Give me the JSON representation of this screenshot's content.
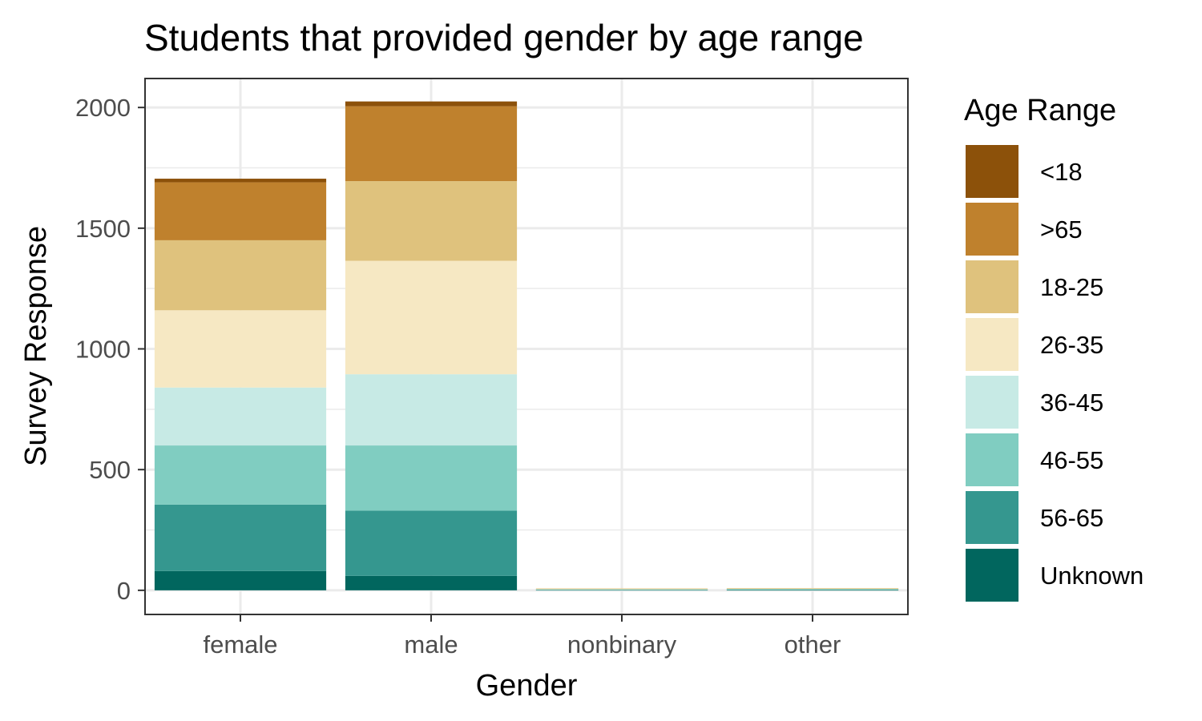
{
  "chart_data": {
    "type": "bar",
    "stacked": true,
    "title": "Students that provided gender by age range",
    "xlabel": "Gender",
    "ylabel": "Survey Response",
    "categories": [
      "female",
      "male",
      "nonbinary",
      "other"
    ],
    "ylim": [
      -100,
      2120
    ],
    "yticks": [
      0,
      500,
      1000,
      1500,
      2000
    ],
    "ytick_labels": [
      "0",
      "500",
      "1000",
      "1500",
      "2000"
    ],
    "grid": true,
    "legend": {
      "title": "Age Range",
      "position": "right"
    },
    "series": [
      {
        "name": "<18",
        "color": "#8c510a",
        "values": [
          15,
          20,
          0,
          0
        ]
      },
      {
        "name": ">65",
        "color": "#bf812d",
        "values": [
          240,
          310,
          0,
          0
        ]
      },
      {
        "name": "18-25",
        "color": "#dfc27d",
        "values": [
          290,
          330,
          1,
          1
        ]
      },
      {
        "name": "26-35",
        "color": "#f6e8c3",
        "values": [
          320,
          470,
          2,
          1
        ]
      },
      {
        "name": "36-45",
        "color": "#c7eae5",
        "values": [
          240,
          295,
          1,
          2
        ]
      },
      {
        "name": "46-55",
        "color": "#80cdc1",
        "values": [
          245,
          270,
          1,
          2
        ]
      },
      {
        "name": "56-65",
        "color": "#35978f",
        "values": [
          275,
          270,
          1,
          1
        ]
      },
      {
        "name": "Unknown",
        "color": "#01665e",
        "values": [
          80,
          60,
          2,
          2
        ]
      }
    ]
  }
}
